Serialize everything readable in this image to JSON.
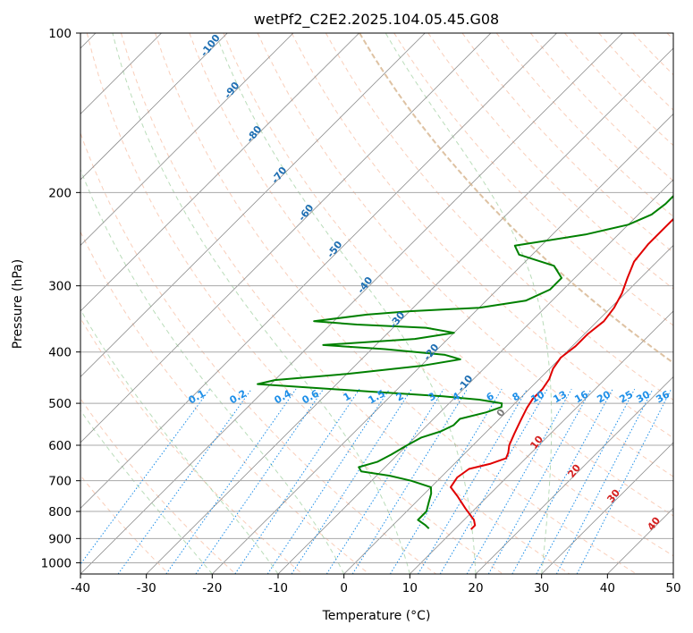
{
  "chart_data": {
    "type": "line",
    "title": "wetPf2_C2E2.2025.104.05.45.G08",
    "xlabel": "Temperature (°C)",
    "ylabel": "Pressure (hPa)",
    "xlim": [
      -40,
      50
    ],
    "ylim": [
      1050,
      100
    ],
    "y_scale": "log",
    "grid": true,
    "x_ticks": [
      -40,
      -30,
      -20,
      -10,
      0,
      10,
      20,
      30,
      40,
      50
    ],
    "y_ticks": [
      100,
      200,
      300,
      400,
      500,
      600,
      700,
      800,
      900,
      1000
    ],
    "skew_note": "Skew-T log-P diagram",
    "series": [
      {
        "color": "#e00000",
        "points": [
          {
            "p": 100,
            "t": 2
          },
          {
            "p": 110,
            "t": -1
          },
          {
            "p": 120,
            "t": -3.5
          },
          {
            "p": 130,
            "t": -4
          },
          {
            "p": 140,
            "t": -3
          },
          {
            "p": 150,
            "t": -3
          },
          {
            "p": 160,
            "t": -3.5
          },
          {
            "p": 170,
            "t": -3.5
          },
          {
            "p": 180,
            "t": -4
          },
          {
            "p": 190,
            "t": -4.5
          },
          {
            "p": 200,
            "t": -4
          },
          {
            "p": 215,
            "t": -4
          },
          {
            "p": 230,
            "t": -4
          },
          {
            "p": 250,
            "t": -4
          },
          {
            "p": 270,
            "t": -3.5
          },
          {
            "p": 290,
            "t": -2
          },
          {
            "p": 310,
            "t": -0.5
          },
          {
            "p": 330,
            "t": 0.5
          },
          {
            "p": 350,
            "t": 1
          },
          {
            "p": 370,
            "t": 0.5
          },
          {
            "p": 390,
            "t": 0.5
          },
          {
            "p": 410,
            "t": 0
          },
          {
            "p": 430,
            "t": 0.5
          },
          {
            "p": 450,
            "t": 1.5
          },
          {
            "p": 470,
            "t": 2
          },
          {
            "p": 490,
            "t": 2
          },
          {
            "p": 510,
            "t": 2.5
          },
          {
            "p": 540,
            "t": 3.5
          },
          {
            "p": 570,
            "t": 4.5
          },
          {
            "p": 600,
            "t": 5.5
          },
          {
            "p": 620,
            "t": 6.5
          },
          {
            "p": 635,
            "t": 7
          },
          {
            "p": 650,
            "t": 5.5
          },
          {
            "p": 665,
            "t": 3
          },
          {
            "p": 690,
            "t": 2.5
          },
          {
            "p": 720,
            "t": 3
          },
          {
            "p": 750,
            "t": 5.5
          },
          {
            "p": 790,
            "t": 8.5
          },
          {
            "p": 830,
            "t": 11.5
          },
          {
            "p": 850,
            "t": 12.5
          },
          {
            "p": 865,
            "t": 12.5
          }
        ]
      },
      {
        "color": "#008000",
        "points": [
          {
            "p": 100,
            "t": -9
          },
          {
            "p": 105,
            "t": -10
          },
          {
            "p": 112,
            "t": -11
          },
          {
            "p": 120,
            "t": -11.5
          },
          {
            "p": 130,
            "t": -11
          },
          {
            "p": 140,
            "t": -11
          },
          {
            "p": 150,
            "t": -11.5
          },
          {
            "p": 160,
            "t": -12
          },
          {
            "p": 165,
            "t": -12
          },
          {
            "p": 170,
            "t": -11
          },
          {
            "p": 175,
            "t": -10
          },
          {
            "p": 180,
            "t": -10
          },
          {
            "p": 185,
            "t": -9.5
          },
          {
            "p": 193,
            "t": -8
          },
          {
            "p": 200,
            "t": -7.5
          },
          {
            "p": 210,
            "t": -7.5
          },
          {
            "p": 220,
            "t": -8
          },
          {
            "p": 230,
            "t": -10
          },
          {
            "p": 240,
            "t": -15
          },
          {
            "p": 252,
            "t": -24
          },
          {
            "p": 262,
            "t": -22
          },
          {
            "p": 275,
            "t": -15
          },
          {
            "p": 290,
            "t": -12
          },
          {
            "p": 305,
            "t": -12
          },
          {
            "p": 320,
            "t": -14
          },
          {
            "p": 330,
            "t": -20
          },
          {
            "p": 335,
            "t": -30
          },
          {
            "p": 340,
            "t": -36
          },
          {
            "p": 350,
            "t": -43
          },
          {
            "p": 355,
            "t": -36
          },
          {
            "p": 360,
            "t": -25
          },
          {
            "p": 368,
            "t": -20
          },
          {
            "p": 378,
            "t": -25
          },
          {
            "p": 388,
            "t": -38
          },
          {
            "p": 395,
            "t": -28
          },
          {
            "p": 405,
            "t": -18
          },
          {
            "p": 413,
            "t": -15
          },
          {
            "p": 425,
            "t": -20
          },
          {
            "p": 440,
            "t": -30
          },
          {
            "p": 452,
            "t": -40
          },
          {
            "p": 460,
            "t": -42
          },
          {
            "p": 475,
            "t": -24
          },
          {
            "p": 485,
            "t": -12
          },
          {
            "p": 492,
            "t": -6
          },
          {
            "p": 500,
            "t": -2
          },
          {
            "p": 508,
            "t": -1.5
          },
          {
            "p": 520,
            "t": -3
          },
          {
            "p": 535,
            "t": -6
          },
          {
            "p": 550,
            "t": -6
          },
          {
            "p": 565,
            "t": -7
          },
          {
            "p": 580,
            "t": -9
          },
          {
            "p": 600,
            "t": -10
          },
          {
            "p": 625,
            "t": -11
          },
          {
            "p": 645,
            "t": -12
          },
          {
            "p": 660,
            "t": -14
          },
          {
            "p": 672,
            "t": -13
          },
          {
            "p": 685,
            "t": -8
          },
          {
            "p": 700,
            "t": -4
          },
          {
            "p": 720,
            "t": 0
          },
          {
            "p": 740,
            "t": 1
          },
          {
            "p": 770,
            "t": 2
          },
          {
            "p": 800,
            "t": 3
          },
          {
            "p": 830,
            "t": 3
          },
          {
            "p": 850,
            "t": 5
          },
          {
            "p": 862,
            "t": 6
          }
        ]
      }
    ],
    "dry_adiabat_labels": [
      "-100",
      "-90",
      "-80",
      "-70",
      "-60",
      "-50",
      "-40",
      "-30",
      "-20",
      "-10",
      "0",
      "10",
      "20",
      "30",
      "40"
    ],
    "mixing_ratio_labels": [
      "0.1",
      "0.2",
      "0.4",
      "0.6",
      "1",
      "1.5",
      "2",
      "3",
      "4",
      "6",
      "8",
      "10",
      "13",
      "16",
      "20",
      "25",
      "30",
      "36"
    ]
  },
  "colors": {
    "temperature": "#e00000",
    "dewpoint": "#008000",
    "mixing_ratio": "#1e8fe8",
    "dry_adiabat_label": "#1f6fb3",
    "dry_adiabat_warm_label": "#d42020",
    "zero_label": "#7a7a7a",
    "dry_adiabat_line": "#f4a582",
    "moist_adiabat_line": "#7fbf7f",
    "isotherm": "#8c8c8c",
    "outer_curve": "#d2b48c"
  }
}
